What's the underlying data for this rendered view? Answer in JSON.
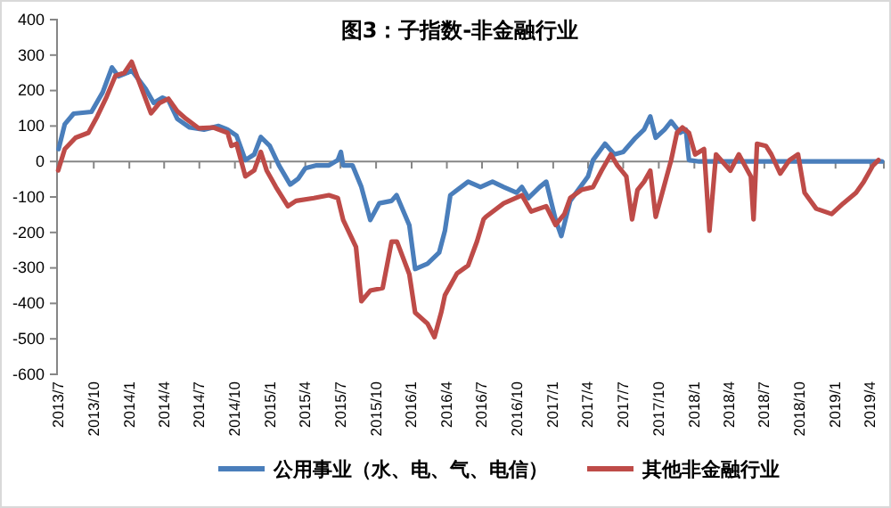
{
  "chart_data": {
    "type": "line",
    "title": "图3：子指数-非金融行业",
    "legend": "bottom",
    "line_style": "solid",
    "marker": "none",
    "grid": false,
    "xlim": [
      "2013-06-28",
      "2019-05-06"
    ],
    "xticks": [
      {
        "value": "2013-07-01",
        "label": "2013/7"
      },
      {
        "value": "2013-10-01",
        "label": "2013/10"
      },
      {
        "value": "2014-01-01",
        "label": "2014/1"
      },
      {
        "value": "2014-04-01",
        "label": "2014/4"
      },
      {
        "value": "2014-07-01",
        "label": "2014/7"
      },
      {
        "value": "2014-10-01",
        "label": "2014/10"
      },
      {
        "value": "2015-01-01",
        "label": "2015/1"
      },
      {
        "value": "2015-04-01",
        "label": "2015/4"
      },
      {
        "value": "2015-07-01",
        "label": "2015/7"
      },
      {
        "value": "2015-10-01",
        "label": "2015/10"
      },
      {
        "value": "2016-01-01",
        "label": "2016/1"
      },
      {
        "value": "2016-04-01",
        "label": "2016/4"
      },
      {
        "value": "2016-07-01",
        "label": "2016/7"
      },
      {
        "value": "2016-10-01",
        "label": "2016/10"
      },
      {
        "value": "2017-01-01",
        "label": "2017/1"
      },
      {
        "value": "2017-04-01",
        "label": "2017/4"
      },
      {
        "value": "2017-07-01",
        "label": "2017/7"
      },
      {
        "value": "2017-10-01",
        "label": "2017/10"
      },
      {
        "value": "2018-01-01",
        "label": "2018/1"
      },
      {
        "value": "2018-04-01",
        "label": "2018/4"
      },
      {
        "value": "2018-07-01",
        "label": "2018/7"
      },
      {
        "value": "2018-10-01",
        "label": "2018/10"
      },
      {
        "value": "2019-01-01",
        "label": "2019/1"
      },
      {
        "value": "2019-04-01",
        "label": "2019/4"
      }
    ],
    "ylim": [
      -600,
      400
    ],
    "yticks": [
      -600,
      -500,
      -400,
      -300,
      -200,
      -100,
      0,
      100,
      200,
      300,
      400
    ],
    "series": [
      {
        "name": "公用事业（水、电、气、电信）",
        "color": "#4a7ebb",
        "x": [
          "2013-07-02",
          "2013-07-18",
          "2013-08-10",
          "2013-09-25",
          "2013-10-24",
          "2013-11-17",
          "2013-12-04",
          "2013-12-27",
          "2014-01-07",
          "2014-02-12",
          "2014-03-05",
          "2014-03-28",
          "2014-04-12",
          "2014-05-05",
          "2014-06-06",
          "2014-07-13",
          "2014-08-20",
          "2014-09-12",
          "2014-10-05",
          "2014-10-28",
          "2014-11-20",
          "2014-12-07",
          "2014-12-30",
          "2015-01-23",
          "2015-02-21",
          "2015-03-14",
          "2015-04-01",
          "2015-04-30",
          "2015-06-01",
          "2015-06-24",
          "2015-07-02",
          "2015-07-08",
          "2015-08-01",
          "2015-08-24",
          "2015-09-16",
          "2015-10-09",
          "2015-11-10",
          "2015-11-23",
          "2015-12-26",
          "2016-01-10",
          "2016-02-11",
          "2016-03-12",
          "2016-03-27",
          "2016-04-10",
          "2016-05-26",
          "2016-06-27",
          "2016-07-28",
          "2016-08-26",
          "2016-09-28",
          "2016-10-12",
          "2016-10-29",
          "2016-11-27",
          "2016-12-14",
          "2017-01-07",
          "2017-01-22",
          "2017-02-14",
          "2017-04-01",
          "2017-04-14",
          "2017-05-15",
          "2017-06-08",
          "2017-07-01",
          "2017-08-02",
          "2017-08-24",
          "2017-09-09",
          "2017-09-23",
          "2017-10-16",
          "2017-11-02",
          "2017-11-25",
          "2017-12-10",
          "2017-12-18",
          "2018-01-13",
          "2019-05-01"
        ],
        "values": [
          35,
          105,
          135,
          140,
          195,
          265,
          240,
          250,
          257,
          205,
          165,
          180,
          173,
          120,
          96,
          90,
          100,
          90,
          73,
          4,
          20,
          69,
          44,
          -11,
          -65,
          -48,
          -19,
          -11,
          -11,
          4,
          27,
          -11,
          -11,
          -72,
          -165,
          -118,
          -111,
          -95,
          -180,
          -303,
          -288,
          -257,
          -195,
          -95,
          -57,
          -72,
          -57,
          -72,
          -88,
          -72,
          -103,
          -72,
          -57,
          -164,
          -210,
          -111,
          -42,
          4,
          50,
          20,
          27,
          67,
          90,
          127,
          67,
          90,
          113,
          81,
          90,
          4,
          0,
          0
        ]
      },
      {
        "name": "其他非金融行业",
        "color": "#be4b48",
        "x": [
          "2013-07-01",
          "2013-07-18",
          "2013-08-15",
          "2013-09-17",
          "2013-10-10",
          "2013-11-03",
          "2013-11-26",
          "2013-12-19",
          "2014-01-07",
          "2014-01-25",
          "2014-02-26",
          "2014-03-20",
          "2014-04-12",
          "2014-05-05",
          "2014-05-28",
          "2014-06-29",
          "2014-08-06",
          "2014-09-12",
          "2014-09-22",
          "2014-10-05",
          "2014-10-28",
          "2014-11-20",
          "2014-12-07",
          "2014-12-22",
          "2015-01-15",
          "2015-02-15",
          "2015-03-08",
          "2015-04-23",
          "2015-06-01",
          "2015-06-24",
          "2015-07-08",
          "2015-08-10",
          "2015-08-24",
          "2015-09-16",
          "2015-10-18",
          "2015-11-10",
          "2015-11-24",
          "2015-12-26",
          "2016-01-10",
          "2016-02-11",
          "2016-02-29",
          "2016-03-18",
          "2016-03-27",
          "2016-04-27",
          "2016-05-26",
          "2016-06-18",
          "2016-07-05",
          "2016-07-11",
          "2016-08-26",
          "2016-10-12",
          "2016-11-05",
          "2016-12-14",
          "2017-01-07",
          "2017-01-30",
          "2017-02-14",
          "2017-03-15",
          "2017-04-14",
          "2017-05-06",
          "2017-05-30",
          "2017-06-16",
          "2017-07-09",
          "2017-07-24",
          "2017-08-07",
          "2017-08-24",
          "2017-09-09",
          "2017-09-23",
          "2017-10-10",
          "2017-11-02",
          "2017-11-17",
          "2017-12-01",
          "2017-12-18",
          "2018-01-03",
          "2018-01-26",
          "2018-02-09",
          "2018-02-26",
          "2018-04-04",
          "2018-04-26",
          "2018-05-27",
          "2018-06-03",
          "2018-06-12",
          "2018-07-05",
          "2018-07-19",
          "2018-08-11",
          "2018-09-04",
          "2018-09-26",
          "2018-10-13",
          "2018-11-12",
          "2018-12-22",
          "2019-01-21",
          "2019-02-23",
          "2019-03-15",
          "2019-04-08",
          "2019-04-22"
        ],
        "values": [
          -25,
          35,
          67,
          81,
          127,
          182,
          242,
          250,
          281,
          228,
          136,
          165,
          177,
          142,
          120,
          94,
          96,
          81,
          44,
          50,
          -42,
          -25,
          27,
          -25,
          -72,
          -126,
          -111,
          -103,
          -95,
          -103,
          -165,
          -241,
          -394,
          -364,
          -357,
          -226,
          -226,
          -318,
          -426,
          -457,
          -495,
          -423,
          -377,
          -316,
          -293,
          -225,
          -163,
          -156,
          -118,
          -95,
          -141,
          -126,
          -179,
          -148,
          -103,
          -80,
          -72,
          -26,
          20,
          -11,
          -42,
          -163,
          -80,
          -57,
          -26,
          -156,
          -88,
          4,
          81,
          96,
          81,
          20,
          35,
          -195,
          20,
          -26,
          20,
          -42,
          -163,
          50,
          44,
          20,
          -34,
          4,
          20,
          -88,
          -133,
          -148,
          -118,
          -88,
          -57,
          -11,
          4
        ]
      }
    ]
  }
}
